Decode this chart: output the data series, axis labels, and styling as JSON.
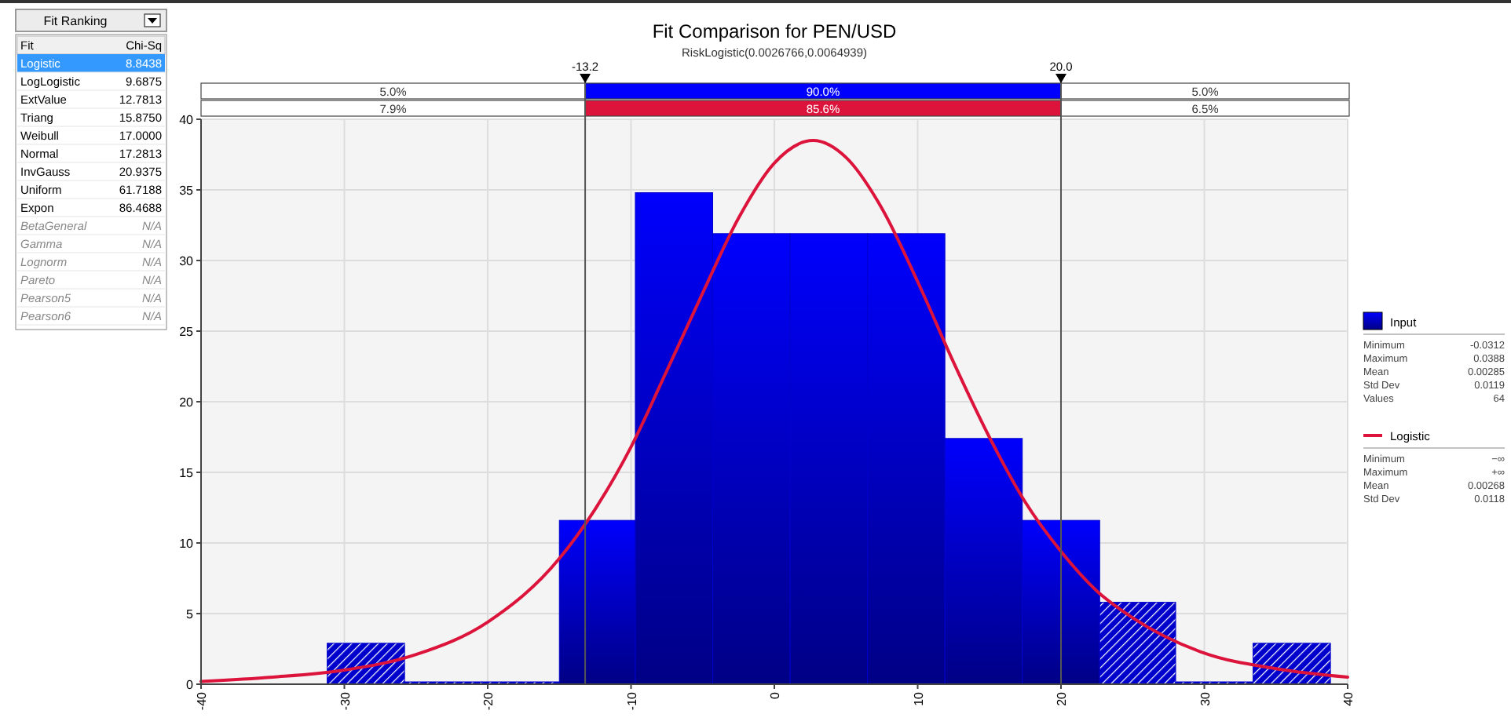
{
  "chart_data": [
    {
      "type": "other",
      "title": "Fit Ranking",
      "categories": [
        "Fit",
        "Logistic",
        "LogLogistic",
        "ExtValue",
        "Triang",
        "Weibull",
        "Normal",
        "InvGauss",
        "Uniform",
        "Expon",
        "BetaGeneral",
        "Gamma",
        "Lognorm",
        "Pareto",
        "Pearson5",
        "Pearson6"
      ],
      "value_labels": [
        "Chi-Sq",
        "8.8438",
        "9.6875",
        "12.7813",
        "15.8750",
        "17.0000",
        "17.2813",
        "20.9375",
        "61.7188",
        "86.4688",
        "N/A",
        "N/A",
        "N/A",
        "N/A",
        "N/A",
        "N/A"
      ]
    },
    {
      "type": "histogram",
      "title": "Fit Comparison for PEN/USD",
      "subtitle": "RiskLogistic(0.0026766,0.0064939)",
      "bins": [
        -31.2,
        -25.8,
        -20.4,
        -15.0,
        -9.7,
        -4.3,
        1.1,
        6.5,
        11.9,
        17.3,
        22.7,
        28.0,
        33.4,
        38.8
      ],
      "series": [
        {
          "name": "Input",
          "type": "histogram",
          "color": "#0000cc",
          "values": [
            2.9,
            0,
            0,
            11.6,
            34.8,
            31.9,
            31.9,
            31.9,
            17.4,
            11.6,
            5.8,
            0,
            2.9
          ]
        },
        {
          "name": "Logistic",
          "type": "line",
          "color": "#dc143c",
          "x": [
            -40,
            -35,
            -30,
            -25,
            -20,
            -15,
            -12.5,
            -10,
            -7.5,
            -5,
            -2.5,
            0,
            2.7,
            5,
            7.5,
            10,
            12.5,
            15,
            17.5,
            20,
            22.5,
            25,
            30,
            35,
            40
          ],
          "values": [
            0.2,
            0.5,
            1.0,
            2.1,
            4.4,
            8.9,
            12.4,
            16.8,
            22.2,
            27.7,
            33.0,
            36.9,
            38.5,
            37.3,
            33.7,
            28.5,
            22.8,
            17.5,
            12.9,
            9.4,
            6.6,
            4.7,
            2.2,
            1.1,
            0.5
          ]
        }
      ],
      "xlim": [
        -40,
        40
      ],
      "xticks": [
        -40,
        -30,
        -20,
        -10,
        0,
        10,
        20,
        30,
        40
      ],
      "ylim": [
        0,
        40
      ],
      "yticks": [
        0,
        5,
        10,
        15,
        20,
        25,
        30,
        35,
        40
      ],
      "grid": true,
      "legend": "right",
      "ref_lines": [
        {
          "axis": "x",
          "value": -13.2,
          "label": "-13.2"
        },
        {
          "axis": "x",
          "value": 20.0,
          "label": "20.0"
        }
      ],
      "annotations": [
        "5.0%",
        "90.0%",
        "5.0%",
        "7.9%",
        "85.6%",
        "6.5%",
        "Minimum",
        "-0.0312",
        "Maximum",
        "0.0388",
        "Mean",
        "0.00285",
        "Std Dev",
        "0.0119",
        "Values",
        "64",
        "Minimum",
        "−∞",
        "Maximum",
        "+∞",
        "Mean",
        "0.00268",
        "Std Dev",
        "0.0118"
      ]
    }
  ]
}
